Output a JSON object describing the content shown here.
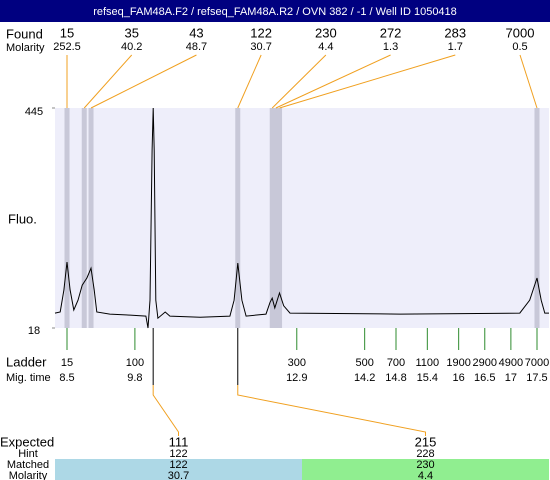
{
  "chart_data": {
    "type": "electropherogram",
    "title": "refseq_FAM48A.F2 / refseq_FAM48A.R2 / OVN 382 / -1 / Well ID 1050418",
    "y_label": "Fluo.",
    "ylim": [
      18,
      445
    ],
    "yticks": [
      18,
      445
    ],
    "xlim": [
      8.27,
      17.73
    ],
    "trace": {
      "color": "#000000",
      "x": [
        8.27,
        8.37,
        8.44,
        8.5,
        8.56,
        8.63,
        8.71,
        8.79,
        8.83,
        8.88,
        8.96,
        9.02,
        9.07,
        9.32,
        9.71,
        10.01,
        10.05,
        10.09,
        10.13,
        10.15,
        10.17,
        10.2,
        10.24,
        10.38,
        10.47,
        11.05,
        11.62,
        11.7,
        11.77,
        11.85,
        11.93,
        12.31,
        12.39,
        12.43,
        12.48,
        12.57,
        12.65,
        12.77,
        14.88,
        17.17,
        17.36,
        17.5,
        17.58,
        17.65,
        17.73
      ],
      "values": [
        47,
        49,
        92,
        146,
        92,
        53,
        72,
        101,
        107,
        115,
        134,
        92,
        49,
        45,
        43,
        41,
        18,
        72,
        363,
        445,
        363,
        72,
        37,
        49,
        41,
        39,
        41,
        72,
        144,
        72,
        41,
        45,
        68,
        76,
        57,
        86,
        61,
        47,
        45,
        47,
        72,
        115,
        72,
        47,
        47
      ]
    },
    "found": {
      "label": "Found",
      "molarity_label": "Molarity",
      "color": "#f0a020",
      "band_color": "#c8c8d8",
      "sizes": [
        15,
        35,
        43,
        122,
        230,
        272,
        283,
        7000
      ],
      "molarity": [
        252.5,
        40.2,
        48.7,
        30.7,
        4.4,
        1.3,
        1.7,
        0.5
      ],
      "times": [
        8.5,
        8.83,
        8.96,
        11.77,
        12.43,
        12.5,
        12.57,
        17.5
      ]
    },
    "ladder": {
      "label": "Ladder",
      "time_label": "Mig. time",
      "color": "#2e8b2e",
      "sizes": [
        15,
        100,
        300,
        500,
        700,
        1100,
        1900,
        2900,
        4900,
        7000
      ],
      "times": [
        8.5,
        9.8,
        12.9,
        14.2,
        14.8,
        15.4,
        16,
        16.5,
        17,
        17.5
      ]
    },
    "expected": {
      "label": "Expected",
      "hint_label": "Hint",
      "matched_label": "Matched",
      "molarity_label": "Molarity",
      "sizes": [
        111,
        215
      ],
      "hint": [
        122,
        228
      ],
      "matched": [
        122,
        230
      ],
      "molarity": [
        30.7,
        4.4
      ],
      "times": [
        10.15,
        11.77
      ],
      "colors": [
        "#add8e6",
        "#90ee90"
      ]
    }
  }
}
